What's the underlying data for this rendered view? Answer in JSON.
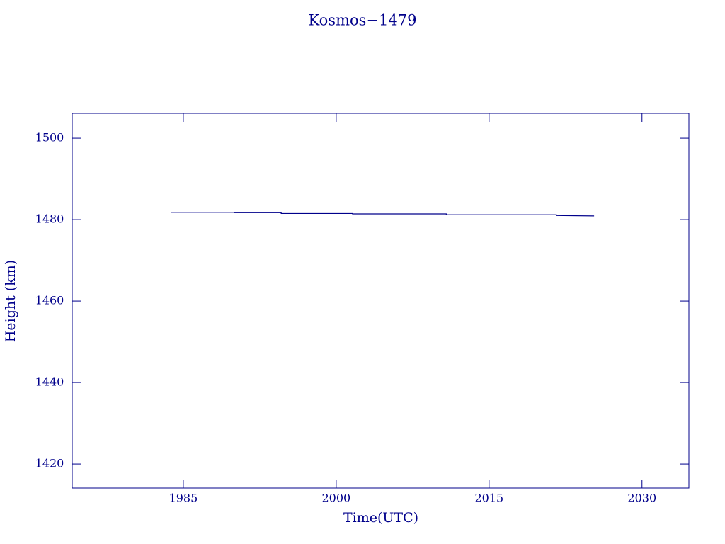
{
  "chart_data": {
    "type": "line",
    "title": "Kosmos−1479",
    "xlabel": "Time(UTC)",
    "ylabel": "Height (km)",
    "x": [
      1983.8,
      1990.0,
      1990.0,
      1994.6,
      1994.6,
      2001.6,
      2001.6,
      2010.8,
      2010.8,
      2021.6,
      2021.6,
      2025.3
    ],
    "series": [
      {
        "name": "Kosmos−1479",
        "color": "#00008b",
        "values": [
          1481.8,
          1481.8,
          1481.7,
          1481.7,
          1481.5,
          1481.5,
          1481.4,
          1481.4,
          1481.2,
          1481.2,
          1481.0,
          1480.9
        ]
      }
    ],
    "xlim": [
      1974.1,
      2034.6
    ],
    "xticks": [
      1985,
      2000,
      2015,
      2030
    ],
    "ylim": [
      1414.1,
      1506.1
    ],
    "yticks": [
      1420,
      1440,
      1460,
      1480,
      1500
    ],
    "axis_color": "#00008b"
  }
}
